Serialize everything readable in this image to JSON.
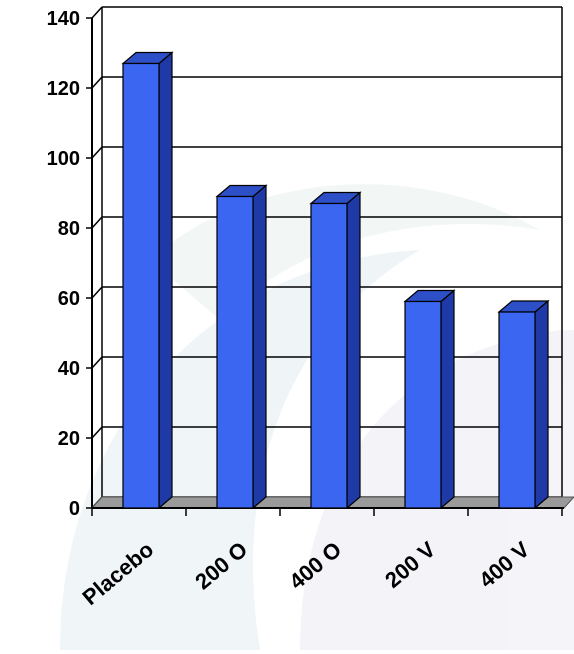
{
  "chart_data": {
    "type": "bar",
    "style": "3d-column",
    "categories": [
      "Placebo",
      "200 O",
      "400 O",
      "200 V",
      "400 V"
    ],
    "values": [
      127,
      89,
      87,
      59,
      56
    ],
    "ylim": [
      0,
      140
    ],
    "yticks": [
      0,
      20,
      40,
      60,
      80,
      100,
      120,
      140
    ],
    "grid": true,
    "legend": "none",
    "colors": {
      "bar_front": "#3a66f2",
      "bar_side": "#1f3aa6",
      "bar_top": "#2d50c8",
      "floor": "#9a9a9a",
      "watermark": "#e6f0f3"
    }
  }
}
